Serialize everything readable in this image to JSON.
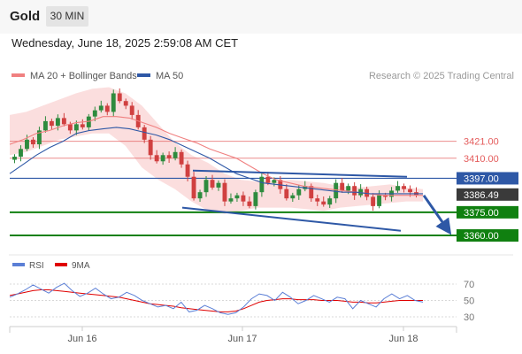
{
  "header": {
    "symbol": "Gold",
    "timeframe": "30 MIN",
    "timestamp": "Wednesday, June 18, 2025 2:59:08 AM CET",
    "copyright": "Research © 2025 Trading Central"
  },
  "legend": [
    {
      "label": "MA 20 + Bollinger Bands",
      "color": "#f08080"
    },
    {
      "label": "MA 50",
      "color": "#2e58a6"
    }
  ],
  "rsi_legend": [
    {
      "label": "RSI",
      "color": "#5b7fd6"
    },
    {
      "label": "9MA",
      "color": "#e00000"
    }
  ],
  "chart_data": {
    "type": "candlestick",
    "x_ticks": [
      "Jun 16",
      "Jun 17",
      "Jun 18"
    ],
    "current_price": 3386.49,
    "price_levels": [
      {
        "label": "3421.00",
        "value": 3421.0,
        "kind": "resistance",
        "color": "#e45c5c"
      },
      {
        "label": "3410.00",
        "value": 3410.0,
        "kind": "resistance",
        "color": "#e45c5c"
      },
      {
        "label": "3397.00",
        "value": 3397.0,
        "kind": "pivot",
        "color": "#2e58a6"
      },
      {
        "label": "3386.49",
        "value": 3386.49,
        "kind": "last",
        "color": "#3a3a3a"
      },
      {
        "label": "3375.00",
        "value": 3375.0,
        "kind": "support",
        "color": "#108010"
      },
      {
        "label": "3360.00",
        "value": 3360.0,
        "kind": "support",
        "color": "#108010"
      }
    ],
    "close_path": [
      3411,
      3416,
      3422,
      3419,
      3428,
      3434,
      3431,
      3436,
      3432,
      3428,
      3432,
      3430,
      3437,
      3441,
      3444,
      3440,
      3452,
      3447,
      3444,
      3438,
      3430,
      3422,
      3412,
      3408,
      3412,
      3410,
      3414,
      3406,
      3398,
      3384,
      3388,
      3396,
      3391,
      3394,
      3382,
      3384,
      3386,
      3382,
      3379,
      3388,
      3398,
      3394,
      3396,
      3390,
      3384,
      3386,
      3390,
      3392,
      3384,
      3382,
      3380,
      3384,
      3394,
      3389,
      3392,
      3386,
      3390,
      3385,
      3379,
      3386,
      3385,
      3389,
      3392,
      3390,
      3388,
      3386
    ],
    "ma20": [
      3419,
      3422,
      3426,
      3428,
      3431,
      3433,
      3434,
      3437,
      3437,
      3436,
      3433,
      3430,
      3426,
      3423,
      3420,
      3416,
      3413,
      3410,
      3405,
      3400,
      3396,
      3394,
      3392,
      3391,
      3390,
      3389,
      3388,
      3387,
      3386,
      3386,
      3386,
      3386
    ],
    "ma50": [
      3400,
      3406,
      3412,
      3417,
      3421,
      3426,
      3428,
      3429,
      3430,
      3429,
      3427,
      3425,
      3422,
      3418,
      3414,
      3410,
      3405,
      3400,
      3397,
      3394,
      3393,
      3392,
      3391,
      3390,
      3389,
      3388,
      3388,
      3387,
      3387,
      3387,
      3387,
      3387
    ],
    "bollinger_upper": [
      3438,
      3440,
      3444,
      3448,
      3452,
      3455,
      3456,
      3452,
      3444,
      3432,
      3420,
      3412,
      3407,
      3400,
      3396,
      3395,
      3395,
      3396,
      3395,
      3394,
      3392,
      3391,
      3392,
      3393,
      3391,
      3390
    ],
    "bollinger_lower": [
      3412,
      3414,
      3418,
      3422,
      3424,
      3426,
      3426,
      3418,
      3404,
      3396,
      3390,
      3382,
      3376,
      3374,
      3376,
      3378,
      3378,
      3378,
      3377,
      3376,
      3378,
      3379,
      3380,
      3381,
      3382,
      3382
    ],
    "channel_upper": [
      3402,
      3398
    ],
    "channel_lower": [
      3378,
      3363
    ],
    "forecast_target": 3360,
    "rsi": {
      "ticks": [
        "70",
        "50",
        "30"
      ],
      "rsi_values": [
        54,
        58,
        63,
        69,
        64,
        59,
        66,
        71,
        62,
        55,
        59,
        65,
        58,
        52,
        54,
        60,
        56,
        50,
        46,
        42,
        44,
        40,
        48,
        36,
        38,
        44,
        40,
        35,
        33,
        35,
        42,
        52,
        58,
        56,
        50,
        60,
        54,
        46,
        50,
        56,
        52,
        48,
        54,
        52,
        40,
        50,
        46,
        42,
        52,
        58,
        52,
        56,
        50,
        48
      ],
      "ma9_values": [
        56,
        58,
        60,
        62,
        63,
        63,
        62,
        61,
        60,
        59,
        58,
        57,
        56,
        55,
        54,
        52,
        50,
        48,
        46,
        45,
        44,
        43,
        41,
        40,
        39,
        38,
        37,
        36,
        36,
        37,
        40,
        44,
        48,
        50,
        51,
        52,
        52,
        51,
        51,
        51,
        50,
        50,
        50,
        49,
        48,
        48,
        47,
        47,
        48,
        49,
        50,
        50,
        50,
        50
      ]
    }
  }
}
